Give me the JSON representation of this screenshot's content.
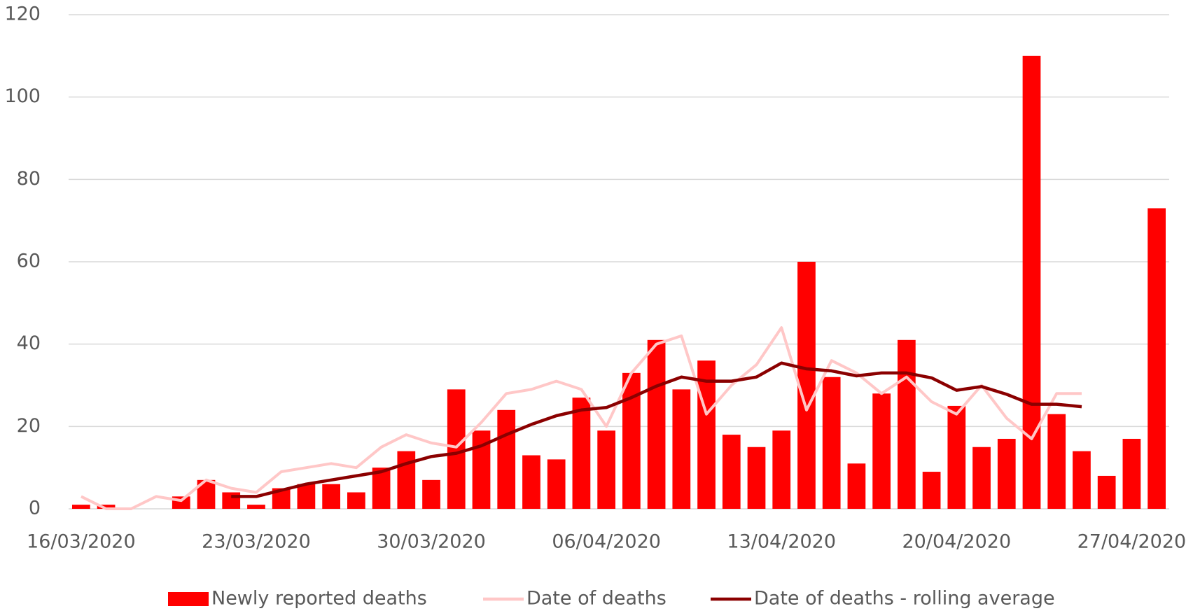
{
  "chart_data": {
    "type": "bar_line",
    "categories": [
      "16/03/2020",
      null,
      null,
      null,
      null,
      null,
      null,
      "23/03/2020",
      null,
      null,
      null,
      null,
      null,
      null,
      "30/03/2020",
      null,
      null,
      null,
      null,
      null,
      null,
      "06/04/2020",
      null,
      null,
      null,
      null,
      null,
      null,
      "13/04/2020",
      null,
      null,
      null,
      null,
      null,
      null,
      "20/04/2020",
      null,
      null,
      null,
      null,
      null,
      null,
      "27/04/2020",
      null
    ],
    "series": [
      {
        "name": "Newly reported deaths",
        "type": "bar",
        "color": "#ff0000",
        "values": [
          1,
          1,
          0,
          0,
          3,
          7,
          4,
          1,
          5,
          6,
          6,
          4,
          10,
          14,
          7,
          29,
          19,
          24,
          13,
          12,
          27,
          19,
          33,
          41,
          29,
          36,
          18,
          15,
          19,
          60,
          32,
          11,
          28,
          41,
          9,
          25,
          15,
          17,
          110,
          23,
          14,
          8,
          17,
          73
        ]
      },
      {
        "name": "Date of deaths",
        "type": "line",
        "color": "#ffc7c7",
        "values": [
          3,
          0,
          0,
          3,
          2,
          7,
          5,
          4,
          9,
          10,
          11,
          10,
          15,
          18,
          16,
          15,
          21,
          28,
          29,
          31,
          29,
          20,
          33,
          40,
          42,
          23,
          30,
          35,
          44,
          24,
          36,
          33,
          28,
          32,
          26,
          23,
          30,
          22,
          17,
          28,
          28,
          null,
          null,
          null
        ]
      },
      {
        "name": "Date of deaths - rolling average",
        "type": "line",
        "color": "#8b0000",
        "values": [
          null,
          null,
          null,
          null,
          null,
          null,
          3,
          3,
          4.5,
          6,
          7,
          8,
          9,
          11,
          12.7,
          13.5,
          15.3,
          18,
          20.5,
          22.6,
          24,
          24.6,
          27,
          29.8,
          32,
          31,
          31,
          32,
          35.4,
          34,
          33.5,
          32.3,
          33,
          33,
          31.8,
          28.8,
          29.7,
          27.8,
          25.4,
          25.4,
          24.8,
          null,
          null,
          null
        ]
      }
    ],
    "ylim": [
      0,
      120
    ],
    "yticks": [
      0,
      20,
      40,
      60,
      80,
      100,
      120
    ],
    "grid": true,
    "legend": "bottom"
  }
}
